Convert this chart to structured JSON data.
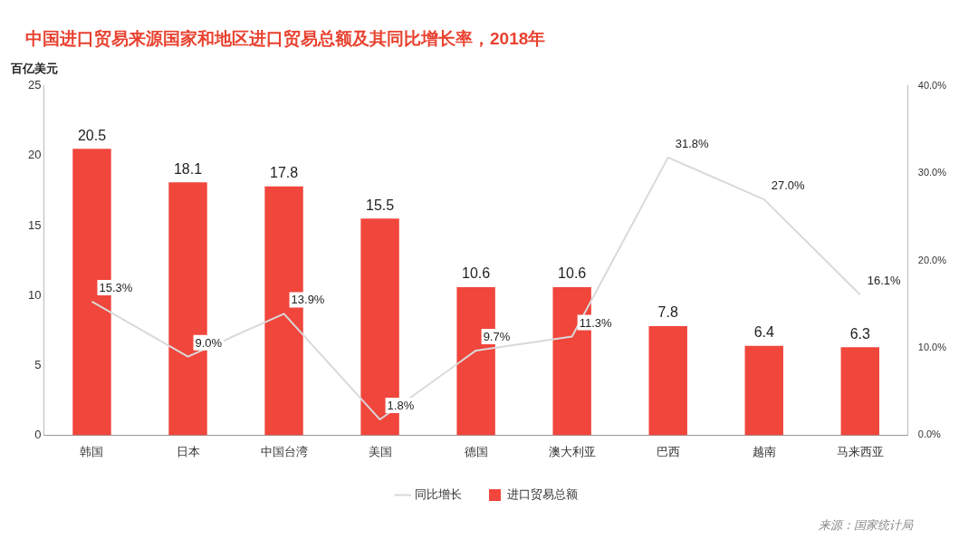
{
  "chart_data": {
    "type": "bar",
    "title": "中国进口贸易来源国家和地区进口贸易总额及其同比增长率，2018年",
    "ylabel": "百亿美元",
    "categories": [
      "韩国",
      "日本",
      "中国台湾",
      "美国",
      "德国",
      "澳大利亚",
      "巴西",
      "越南",
      "马来西亚"
    ],
    "series": [
      {
        "name": "进口贸易总额",
        "color": "#f0463c",
        "values": [
          20.5,
          18.1,
          17.8,
          15.5,
          10.6,
          10.6,
          7.8,
          6.4,
          6.3
        ],
        "value_labels": [
          "20.5",
          "18.1",
          "17.8",
          "15.5",
          "10.6",
          "10.6",
          "7.8",
          "6.4",
          "6.3"
        ]
      },
      {
        "name": "同比增长",
        "type": "line",
        "axis": "y2",
        "color": "#d9d9d9",
        "values": [
          15.3,
          9.0,
          13.9,
          1.8,
          9.7,
          11.3,
          31.8,
          27.0,
          16.1
        ],
        "value_labels": [
          "15.3%",
          "9.0%",
          "13.9%",
          "1.8%",
          "9.7%",
          "11.3%",
          "31.8%",
          "27.0%",
          "16.1%"
        ]
      }
    ],
    "ylim": [
      0,
      25
    ],
    "yticks": [
      0,
      5,
      10,
      15,
      20,
      25
    ],
    "y2lim": [
      0,
      40
    ],
    "y2ticks": [
      {
        "value": 0,
        "label": "0.0%"
      },
      {
        "value": 10,
        "label": "10.0%"
      },
      {
        "value": 20,
        "label": "20.0%"
      },
      {
        "value": 30,
        "label": "30.0%"
      },
      {
        "value": 40,
        "label": "40.0%"
      }
    ],
    "grid": false,
    "legend": "bottom",
    "marker": "none",
    "annotations": [
      "来源：国家统计局"
    ]
  }
}
